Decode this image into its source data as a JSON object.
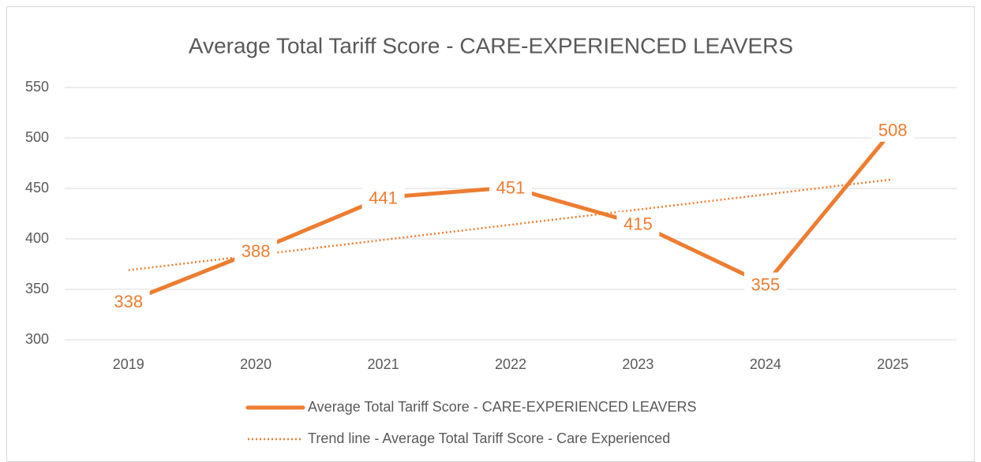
{
  "chart_data": {
    "type": "line",
    "title": "Average Total Tariff Score - CARE-EXPERIENCED LEAVERS",
    "categories": [
      "2019",
      "2020",
      "2021",
      "2022",
      "2023",
      "2024",
      "2025"
    ],
    "series": [
      {
        "name": "Average Total Tariff Score - CARE-EXPERIENCED LEAVERS",
        "color": "#ED7D31",
        "style": "solid",
        "data_labels": true,
        "values": [
          338,
          388,
          441,
          451,
          415,
          355,
          508
        ]
      },
      {
        "name": "Trend line - Average Total Tariff Score - Care Experienced",
        "color": "#ED7D31",
        "style": "dotted",
        "data_labels": false,
        "values": [
          369,
          384,
          399,
          414,
          429,
          444,
          459
        ]
      }
    ],
    "ylim": [
      300,
      550
    ],
    "yticks": [
      300,
      350,
      400,
      450,
      500,
      550
    ],
    "grid": true,
    "legend": "bottom"
  }
}
